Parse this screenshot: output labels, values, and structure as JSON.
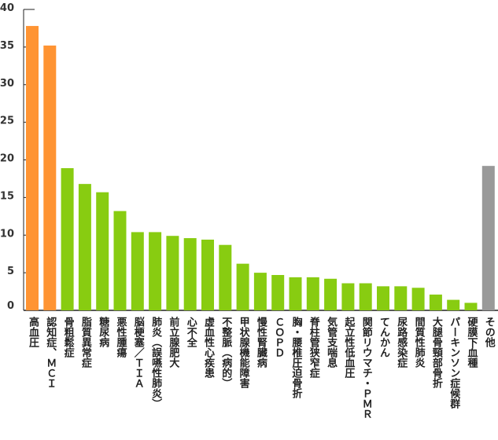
{
  "chart_data": {
    "type": "bar",
    "title": "",
    "xlabel": "",
    "ylabel": "",
    "ylim": [
      0,
      40
    ],
    "yticks": [
      0,
      5,
      10,
      15,
      20,
      25,
      30,
      35,
      40
    ],
    "grid": false,
    "categories": [
      "高血圧",
      "認知症、ＭＣＩ",
      "骨粗鬆症",
      "脂質異常症",
      "糖尿病",
      "悪性腫瘍",
      "脳梗塞／ＴＩＡ",
      "肺炎（誤嚥性肺炎）",
      "前立腺肥大",
      "心不全",
      "虚血性心疾患",
      "不整脈（病的）",
      "甲状腺機能障害",
      "慢性腎臓病",
      "ＣＯＰＤ",
      "胸・腰椎圧迫骨折",
      "脊柱管狭窄症",
      "気管支喘息",
      "起立性低血圧",
      "関節リウマチ・ＰＭＲ",
      "てんかん",
      "尿路感染症",
      "間質性肺炎",
      "大腿骨頸部骨折",
      "パーキンソン症候群",
      "硬膜下血種",
      "その他"
    ],
    "values": [
      37.8,
      35.2,
      18.9,
      16.8,
      15.7,
      13.2,
      10.4,
      10.4,
      9.9,
      9.6,
      9.4,
      8.7,
      6.2,
      5.0,
      4.7,
      4.4,
      4.4,
      4.2,
      3.6,
      3.6,
      3.2,
      3.2,
      3.0,
      2.1,
      1.4,
      1.0,
      19.2
    ],
    "bar_groups": [
      "top",
      "top",
      "main",
      "main",
      "main",
      "main",
      "main",
      "main",
      "main",
      "main",
      "main",
      "main",
      "main",
      "main",
      "main",
      "main",
      "main",
      "main",
      "main",
      "main",
      "main",
      "main",
      "main",
      "main",
      "main",
      "main",
      "other"
    ],
    "colors": {
      "top": "#ff9433",
      "main": "#88cc11",
      "other": "#999999",
      "axis": "#222222"
    }
  }
}
